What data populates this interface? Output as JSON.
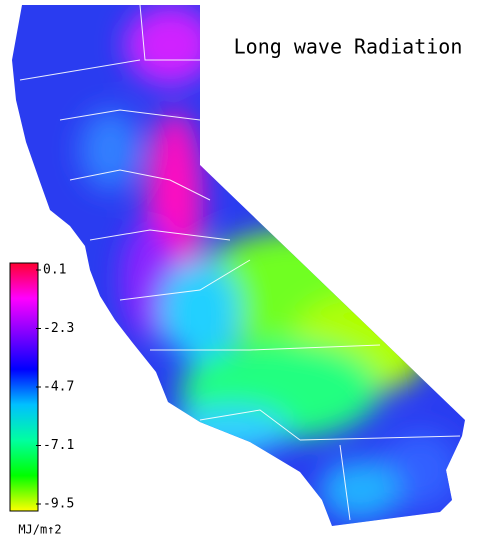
{
  "title": "Long wave Radiation",
  "colorbar": {
    "ticks": [
      0.1,
      -2.3,
      -4.7,
      -7.1,
      -9.5
    ],
    "unit": "MJ/m↑2",
    "colors": [
      "#ff0030",
      "#ff00ff",
      "#8000ff",
      "#0000ff",
      "#00c0ff",
      "#00ffa0",
      "#00ff00",
      "#ffff00"
    ]
  }
}
